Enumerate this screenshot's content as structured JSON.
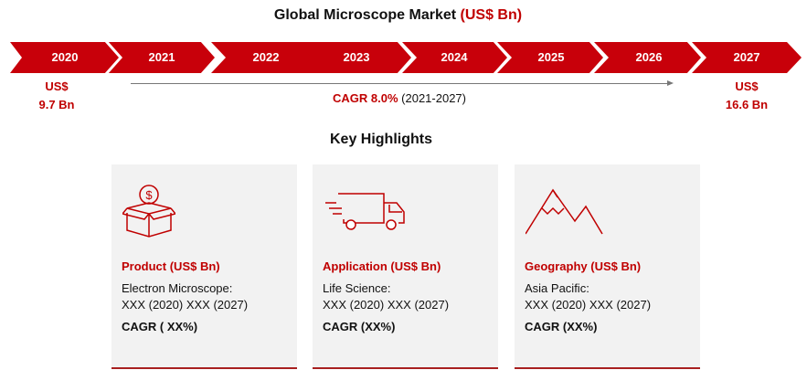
{
  "header": {
    "title_main": "Global Microscope Market",
    "title_unit": "(US$ Bn)"
  },
  "timeline": {
    "years": [
      "2020",
      "2021",
      "2022",
      "2023",
      "2024",
      "2025",
      "2026",
      "2027"
    ],
    "start_value": {
      "line1": "US$",
      "line2": "9.7 Bn"
    },
    "end_value": {
      "line1": "US$",
      "line2": "16.6 Bn"
    },
    "cagr_label": "CAGR 8.0%",
    "cagr_period": "(2021-2027)"
  },
  "highlights": {
    "title": "Key Highlights",
    "cards": [
      {
        "icon": "money-box-icon",
        "title": "Product (US$ Bn)",
        "segment": "Electron Microscope:",
        "values": "XXX (2020) XXX (2027)",
        "cagr": "CAGR ( XX%)"
      },
      {
        "icon": "delivery-truck-icon",
        "title": "Application (US$ Bn)",
        "segment": "Life Science:",
        "values": "XXX (2020) XXX (2027)",
        "cagr": "CAGR (XX%)"
      },
      {
        "icon": "mountain-icon",
        "title": "Geography (US$ Bn)",
        "segment": "Asia Pacific:",
        "values": "XXX (2020) XXX (2027)",
        "cagr": "CAGR (XX%)"
      }
    ]
  },
  "colors": {
    "accent": "#c00000",
    "chevron_fill": "#c8000a",
    "card_background": "#f2f2f2"
  }
}
